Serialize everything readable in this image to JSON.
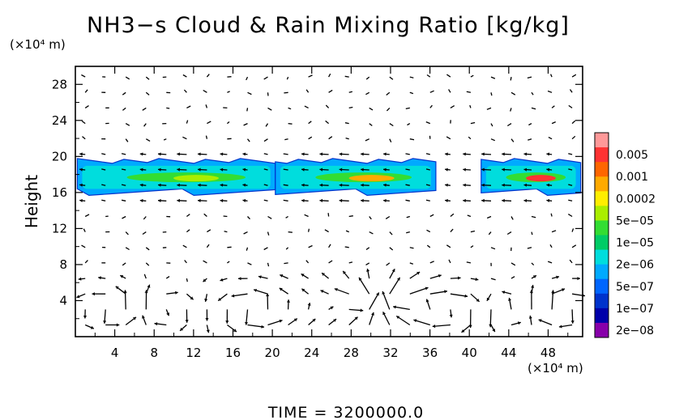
{
  "chart_data": {
    "type": "heatmap",
    "title": "NH3−s Cloud & Rain Mixing Ratio [kg/kg]",
    "xlabel": "",
    "ylabel": "Height",
    "x_unit": "(×10⁴ m)",
    "y_unit": "(×10⁴ m)",
    "xlim": [
      0,
      51.5
    ],
    "ylim": [
      0,
      30
    ],
    "x_ticks": [
      4,
      8,
      12,
      16,
      20,
      24,
      28,
      32,
      36,
      40,
      44,
      48
    ],
    "y_ticks": [
      4,
      8,
      12,
      16,
      20,
      24,
      28
    ],
    "footer": "TIME  =  3200000.0",
    "colorbar": {
      "labels": [
        "0.005",
        "0.001",
        "0.0002",
        "5e−05",
        "1e−05",
        "2e−06",
        "5e−07",
        "1e−07",
        "2e−08"
      ],
      "colors_top_to_bottom": [
        "#ff9999",
        "#ff3333",
        "#ff6600",
        "#ffaa00",
        "#ffee00",
        "#aaee00",
        "#33dd33",
        "#00cc66",
        "#00dddd",
        "#00aaff",
        "#0066ff",
        "#0033cc",
        "#0000aa",
        "#8800aa"
      ]
    },
    "cloud_layer": {
      "height_range": [
        15.5,
        19.5
      ],
      "segments": [
        {
          "x_start": 0.2,
          "x_end": 20.3,
          "peak_level": "5e-05"
        },
        {
          "x_start": 20.3,
          "x_end": 36.6,
          "peak_level": "0.0002"
        },
        {
          "x_start": 41.2,
          "x_end": 51.3,
          "peak_level": "0.001"
        }
      ]
    },
    "wind_vectors": {
      "description": "Quiver field of flow vectors; circulation cells near the surface and weak flow aloft."
    }
  }
}
